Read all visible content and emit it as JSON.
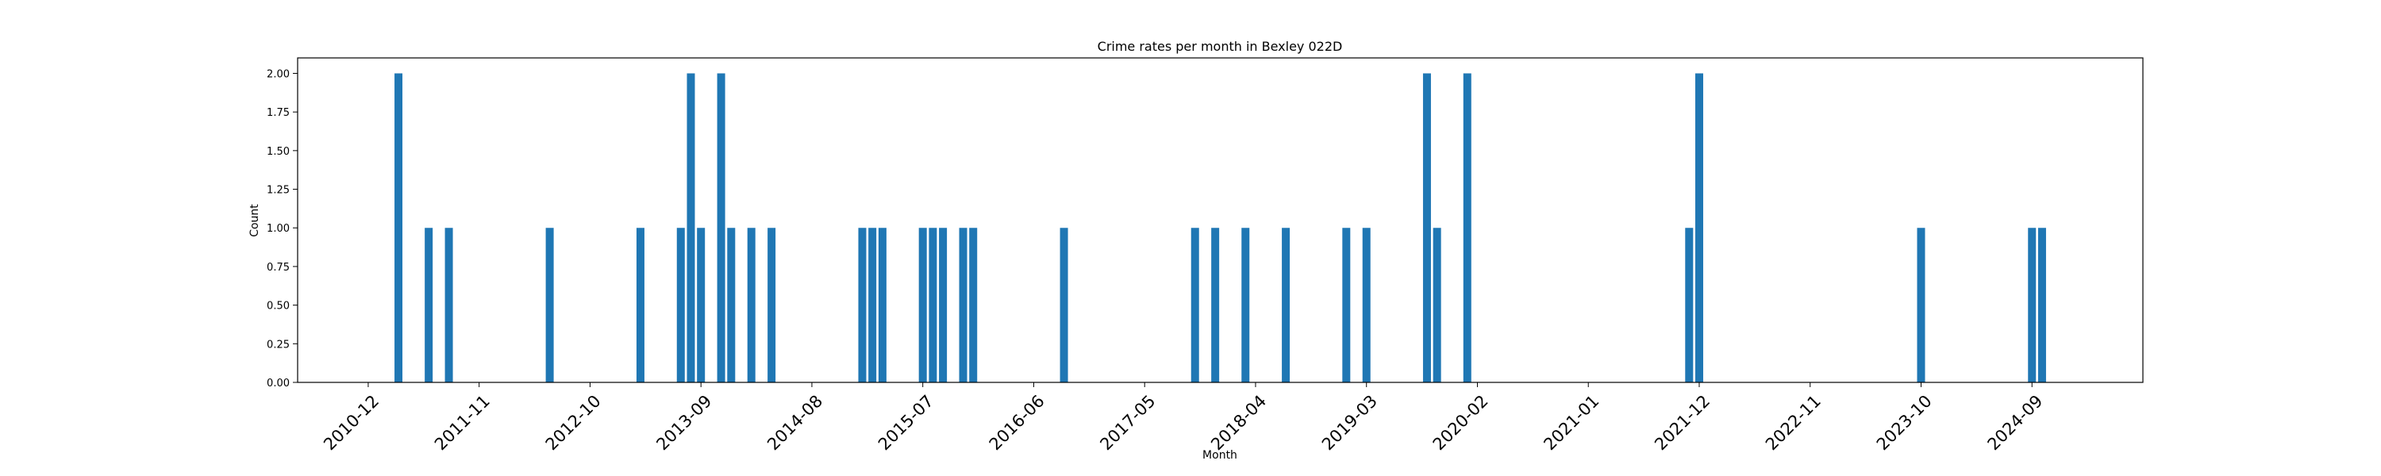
{
  "chart_data": {
    "type": "bar",
    "title": "Crime rates per month in Bexley 022D",
    "xlabel": "Month",
    "ylabel": "Count",
    "ylim": [
      0,
      2.1
    ],
    "yticks": [
      0,
      0.25,
      0.5,
      0.75,
      1.0,
      1.25,
      1.5,
      1.75,
      2.0
    ],
    "ytick_labels": [
      "0.00",
      "0.25",
      "0.50",
      "0.75",
      "1.00",
      "1.25",
      "1.50",
      "1.75",
      "2.00"
    ],
    "xtick_labels": [
      "2010-12",
      "2011-11",
      "2012-10",
      "2013-09",
      "2014-08",
      "2015-07",
      "2016-06",
      "2017-05",
      "2018-04",
      "2019-03",
      "2020-02",
      "2021-01",
      "2021-12",
      "2022-11",
      "2023-10",
      "2024-09"
    ],
    "grid": false,
    "legend": "none",
    "bar_color": "#1f77b4",
    "bars": [
      {
        "x": "2011-03",
        "value": 2
      },
      {
        "x": "2011-06",
        "value": 1
      },
      {
        "x": "2011-08",
        "value": 1
      },
      {
        "x": "2012-06",
        "value": 1
      },
      {
        "x": "2013-03",
        "value": 1
      },
      {
        "x": "2013-07",
        "value": 1
      },
      {
        "x": "2013-08",
        "value": 2
      },
      {
        "x": "2013-09",
        "value": 1
      },
      {
        "x": "2013-11",
        "value": 2
      },
      {
        "x": "2013-12",
        "value": 1
      },
      {
        "x": "2014-02",
        "value": 1
      },
      {
        "x": "2014-04",
        "value": 1
      },
      {
        "x": "2015-01",
        "value": 1
      },
      {
        "x": "2015-02",
        "value": 1
      },
      {
        "x": "2015-03",
        "value": 1
      },
      {
        "x": "2015-07",
        "value": 1
      },
      {
        "x": "2015-08",
        "value": 1
      },
      {
        "x": "2015-09",
        "value": 1
      },
      {
        "x": "2015-11",
        "value": 1
      },
      {
        "x": "2015-12",
        "value": 1
      },
      {
        "x": "2016-09",
        "value": 1
      },
      {
        "x": "2017-10",
        "value": 1
      },
      {
        "x": "2017-12",
        "value": 1
      },
      {
        "x": "2018-03",
        "value": 1
      },
      {
        "x": "2018-07",
        "value": 1
      },
      {
        "x": "2019-01",
        "value": 1
      },
      {
        "x": "2019-03",
        "value": 1
      },
      {
        "x": "2019-09",
        "value": 2
      },
      {
        "x": "2019-10",
        "value": 1
      },
      {
        "x": "2020-01",
        "value": 2
      },
      {
        "x": "2021-11",
        "value": 1
      },
      {
        "x": "2021-12",
        "value": 2
      },
      {
        "x": "2023-10",
        "value": 1
      },
      {
        "x": "2024-09",
        "value": 1
      },
      {
        "x": "2024-10",
        "value": 1
      }
    ]
  }
}
